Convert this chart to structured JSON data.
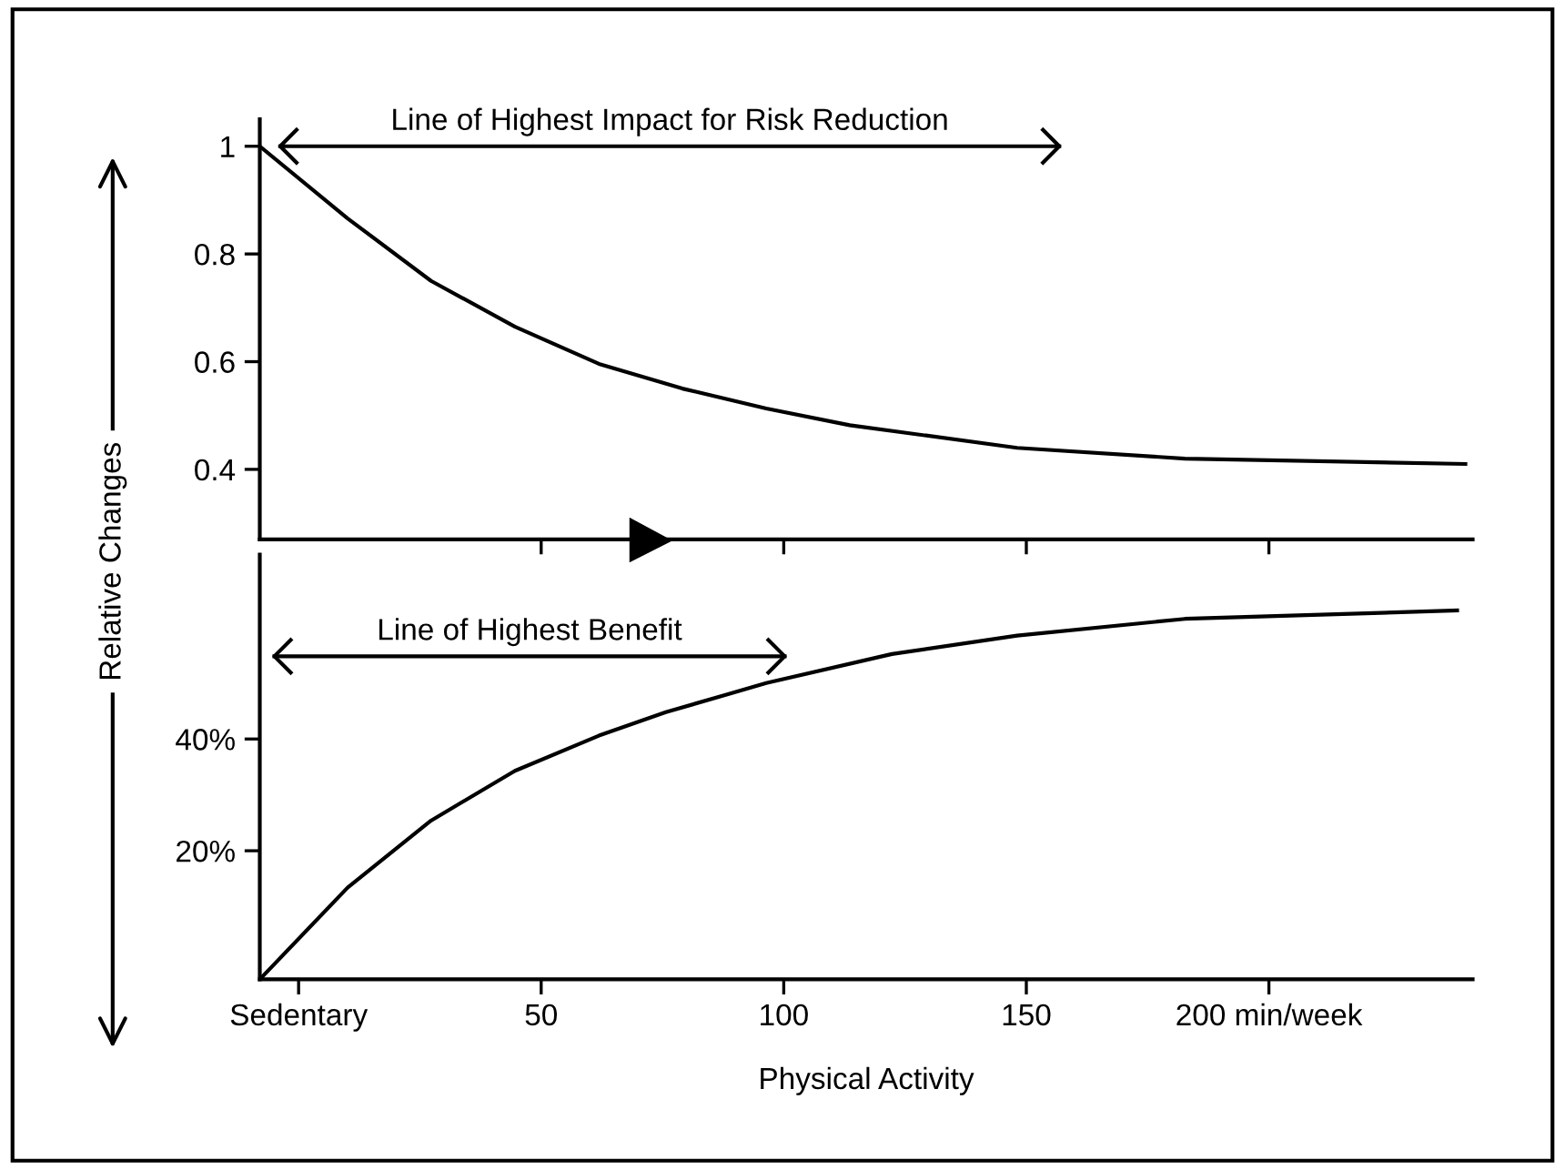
{
  "chart_data": [
    {
      "type": "line",
      "ylabel": "Relative Changes",
      "x": [
        -8,
        10.1,
        27.3,
        44.6,
        61.9,
        79.1,
        96.4,
        113.6,
        148.1,
        182.7,
        240.5
      ],
      "series": [
        {
          "color": "#000000",
          "values": [
            1.0,
            0.866,
            0.75,
            0.665,
            0.596,
            0.55,
            0.513,
            0.482,
            0.44,
            0.42,
            0.41
          ]
        },
        {
          "name": "Line of Highest Impact for Risk Reduction",
          "color": "#000000",
          "x": [
            -3.8,
            156.8
          ],
          "values": [
            1.0,
            1.0
          ]
        }
      ],
      "xlim": [
        -8,
        242
      ],
      "ylim": [
        0.27,
        1.05
      ],
      "xticks": [
        {
          "value": 50,
          "label": null
        },
        {
          "value": 100,
          "label": null
        },
        {
          "value": 150,
          "label": null
        },
        {
          "value": 200,
          "label": null
        }
      ],
      "yticks": [
        0.4,
        0.6,
        0.8,
        1
      ],
      "tick_labels": "y",
      "grid": false,
      "marker": "none",
      "line_style": "solid",
      "legend": false
    },
    {
      "type": "line",
      "xlabel": "Physical Activity",
      "x": [
        -8,
        10.1,
        27.3,
        44.6,
        61.9,
        75.7,
        96.4,
        122.3,
        148.1,
        182.7,
        238.8
      ],
      "series": [
        {
          "color": "#000000",
          "values": [
            -3,
            13.4,
            25.4,
            34.3,
            40.6,
            44.8,
            50,
            55.2,
            58.5,
            61.5,
            63
          ]
        },
        {
          "name": "Line of Highest Benefit",
          "color": "#000000",
          "x": [
            -5,
            100.2
          ],
          "values": [
            54.8,
            54.8
          ]
        }
      ],
      "xlim": [
        -8,
        242
      ],
      "ylim": [
        -3,
        73
      ],
      "xticks": [
        {
          "value": 0,
          "label": "Sedentary"
        },
        50,
        100,
        150,
        {
          "value": 200,
          "label": "200 min/week"
        }
      ],
      "yticks": [
        {
          "value": 20,
          "label": "20%"
        },
        {
          "value": 40,
          "label": "40%"
        }
      ],
      "grid": false,
      "marker": "none",
      "line_style": "solid",
      "legend": false
    }
  ]
}
